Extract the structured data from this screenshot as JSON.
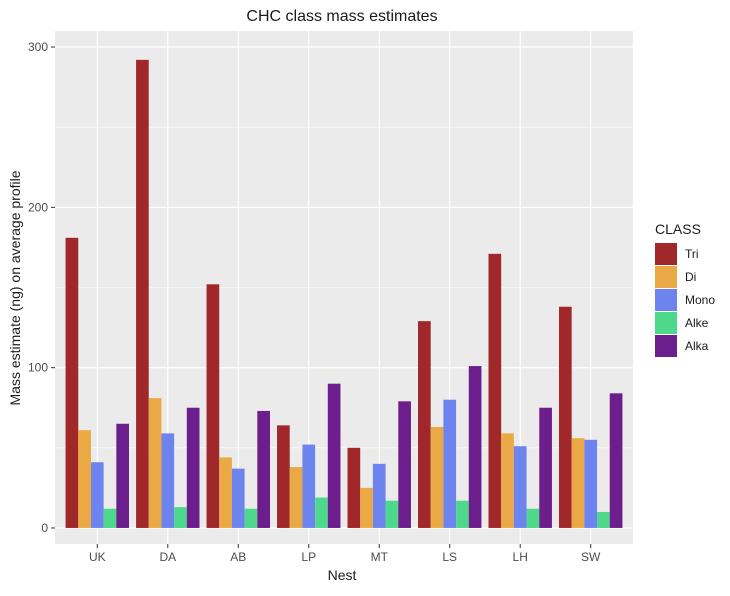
{
  "chart_data": {
    "type": "bar",
    "title": "CHC class mass estimates",
    "xlabel": "Nest",
    "ylabel": "Mass estimate (ng) on average profile",
    "categories": [
      "UK",
      "DA",
      "AB",
      "LP",
      "MT",
      "LS",
      "LH",
      "SW"
    ],
    "ylim": [
      -10,
      310
    ],
    "yticks": [
      0,
      100,
      200,
      300
    ],
    "grid": true,
    "legend_title": "CLASS",
    "legend_position": "right",
    "series": [
      {
        "name": "Tri",
        "color": "#a0282b",
        "values": [
          181,
          292,
          152,
          64,
          50,
          129,
          171,
          138
        ]
      },
      {
        "name": "Di",
        "color": "#eba946",
        "values": [
          61,
          81,
          44,
          38,
          25,
          63,
          59,
          56
        ]
      },
      {
        "name": "Mono",
        "color": "#6d84ef",
        "values": [
          41,
          59,
          37,
          52,
          40,
          80,
          51,
          55
        ]
      },
      {
        "name": "Alke",
        "color": "#4ed88c",
        "values": [
          12,
          13,
          12,
          19,
          17,
          17,
          12,
          10
        ]
      },
      {
        "name": "Alka",
        "color": "#6c1f8c",
        "values": [
          65,
          75,
          73,
          90,
          79,
          101,
          75,
          84
        ]
      }
    ]
  }
}
